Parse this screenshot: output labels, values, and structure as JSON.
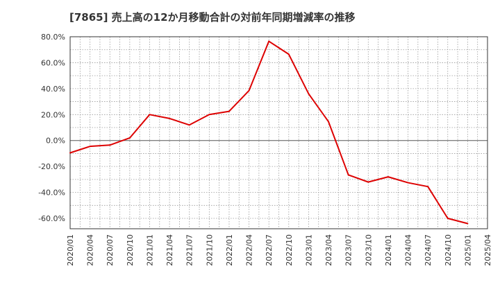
{
  "chart_data": {
    "type": "line",
    "title": "[7865]  売上高の12か月移動合計の対前年同期増減率の推移",
    "xlabel": "",
    "ylabel": "",
    "ylim": [
      -68,
      80
    ],
    "y_ticks": [
      80,
      60,
      40,
      20,
      0,
      -20,
      -40,
      -60
    ],
    "y_tick_labels": [
      "80.0%",
      "60.0%",
      "40.0%",
      "20.0%",
      "0.0%",
      "-20.0%",
      "-40.0%",
      "-60.0%"
    ],
    "x_tick_labels": [
      "2020/01",
      "2020/04",
      "2020/07",
      "2020/10",
      "2021/01",
      "2021/04",
      "2021/07",
      "2021/10",
      "2022/01",
      "2022/04",
      "2022/07",
      "2022/10",
      "2023/01",
      "2023/04",
      "2023/07",
      "2023/10",
      "2024/01",
      "2024/04",
      "2024/07",
      "2024/10",
      "2025/01",
      "2025/04"
    ],
    "grid": true,
    "series": [
      {
        "name": "増減率",
        "color": "#dd0000",
        "values": [
          -9.5,
          -4.5,
          -3.5,
          2,
          20,
          17,
          12,
          20,
          22.5,
          38.5,
          76.5,
          66.5,
          36,
          14.5,
          -26.5,
          -32,
          -28,
          -32.5,
          -35.5,
          -60,
          -64
        ]
      }
    ]
  }
}
